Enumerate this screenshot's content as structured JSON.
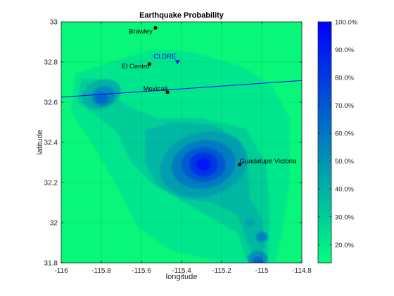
{
  "chart_data": {
    "type": "heatmap",
    "title": "Earthquake Probability",
    "xlabel": "longitude",
    "ylabel": "latitude",
    "xlim": [
      -116,
      -114.8
    ],
    "ylim": [
      31.8,
      33
    ],
    "xticks": [
      -116,
      -115.8,
      -115.6,
      -115.4,
      -115.2,
      -115,
      -114.8
    ],
    "xtick_labels": [
      "-116",
      "-115.8",
      "-115.6",
      "-115.4",
      "-115.2",
      "-115",
      "-114.8"
    ],
    "yticks": [
      31.8,
      32,
      32.2,
      32.4,
      32.6,
      32.8,
      33
    ],
    "ytick_labels": [
      "31.8",
      "32",
      "32.2",
      "32.4",
      "32.6",
      "32.8",
      "33"
    ],
    "grid": true,
    "colorbar": {
      "position": "right",
      "range": [
        13.5,
        100
      ],
      "ticks": [
        20,
        30,
        40,
        50,
        60,
        70,
        80,
        90,
        100
      ],
      "tick_labels": [
        "20.0%",
        "30.0%",
        "40.0%",
        "50.0%",
        "60.0%",
        "70.0%",
        "80.0%",
        "90.0%",
        "100.0%"
      ],
      "colors": [
        "#00ff7f",
        "#0000ff"
      ]
    },
    "hotspots": [
      {
        "lon": -115.29,
        "lat": 32.28,
        "peak": 100
      },
      {
        "lon": -115.8,
        "lat": 32.62,
        "peak": 72
      },
      {
        "lon": -115.02,
        "lat": 31.82,
        "peak": 68
      },
      {
        "lon": -115.0,
        "lat": 31.93,
        "peak": 55
      }
    ],
    "cities": [
      {
        "name": "Brawley",
        "lon": -115.53,
        "lat": 32.97
      },
      {
        "name": "El Centro",
        "lon": -115.56,
        "lat": 32.79
      },
      {
        "name": "Mexicali",
        "lon": -115.47,
        "lat": 32.65
      },
      {
        "name": "Guadalupe Victoria",
        "lon": -115.11,
        "lat": 32.29
      }
    ],
    "station": {
      "name": "CI.DRE",
      "lon": -115.42,
      "lat": 32.8
    },
    "fault_line": [
      {
        "lon": -116,
        "lat": 32.625
      },
      {
        "lon": -114.8,
        "lat": 32.708
      }
    ]
  }
}
